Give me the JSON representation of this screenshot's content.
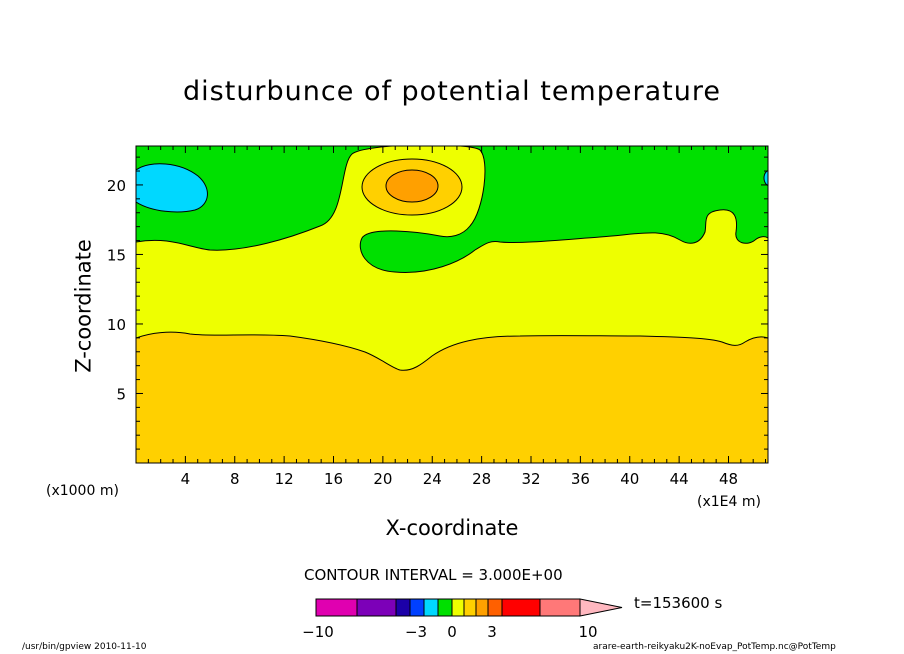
{
  "chart_data": {
    "type": "heatmap",
    "title": "disturbunce of potential temperature",
    "xlabel": "X-coordinate",
    "ylabel": "Z-coordinate",
    "x_unit": "(x1E4 m)",
    "y_unit": "(x1000 m)",
    "x_ticks": [
      4,
      8,
      12,
      16,
      20,
      24,
      28,
      32,
      36,
      40,
      44,
      48
    ],
    "y_ticks": [
      5,
      10,
      15,
      20
    ],
    "xlim": [
      0,
      51.2
    ],
    "ylim": [
      0,
      22.8
    ],
    "contour_interval": "CONTOUR INTERVAL = 3.000E+00",
    "time_label": "t=153600 s",
    "colorbar": {
      "tick_labels": [
        "−10",
        "−3",
        "0",
        "3",
        "10"
      ],
      "levels": [
        -10,
        -3,
        0,
        3,
        10
      ],
      "colors": [
        "#e000b0",
        "#7c00b8",
        "#1c00a8",
        "#0040ff",
        "#00d8ff",
        "#00e000",
        "#eeff00",
        "#ffd000",
        "#ffa000",
        "#ff6000",
        "#ff0000",
        "#ff7878",
        "#ffb8c0"
      ]
    },
    "regions": [
      {
        "name": "lower",
        "z_top_approx": 9,
        "color": "#ffd000"
      },
      {
        "name": "middle",
        "z_range": [
          9,
          16
        ],
        "color": "#eeff00"
      },
      {
        "name": "upper",
        "z_bottom_approx": 16,
        "color": "#00e000"
      },
      {
        "name": "warm core",
        "x": 22,
        "z": 20.5,
        "color": "#ffa000"
      },
      {
        "name": "cold blob",
        "x": 2.5,
        "z": 20.5,
        "color": "#00d8ff"
      }
    ]
  },
  "footer": {
    "left": "/usr/bin/gpview  2010-11-10",
    "right": "arare-earth-reikyaku2K-noEvap_PotTemp.nc@PotTemp"
  }
}
